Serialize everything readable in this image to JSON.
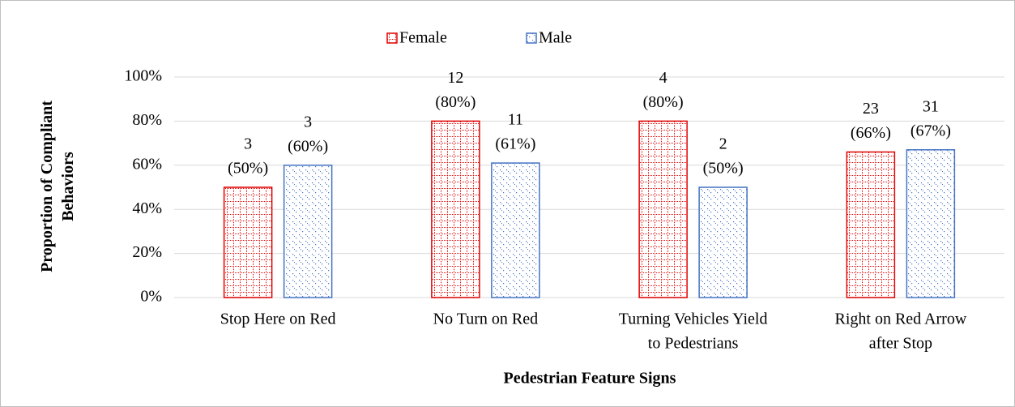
{
  "chart_data": {
    "type": "bar",
    "x_label": "Pedestrian Feature Signs",
    "y_label": [
      "Proportion of Compliant",
      "Behaviors"
    ],
    "categories": [
      [
        "Stop Here on Red"
      ],
      [
        "No Turn on Red"
      ],
      [
        "Turning Vehicles Yield",
        "to Pedestrians"
      ],
      [
        "Right on Red Arrow",
        "after Stop"
      ]
    ],
    "series": [
      {
        "name": "Female",
        "color": "#e00000",
        "values": [
          50,
          80,
          80,
          66
        ],
        "counts": [
          3,
          12,
          4,
          23
        ],
        "value_labels": [
          "(50%)",
          "(80%)",
          "(80%)",
          "(66%)"
        ]
      },
      {
        "name": "Male",
        "color": "#4472c4",
        "values": [
          60,
          61,
          50,
          67
        ],
        "counts": [
          3,
          11,
          2,
          31
        ],
        "value_labels": [
          "(60%)",
          "(61%)",
          "(50%)",
          "(67%)"
        ]
      }
    ],
    "ylim": [
      0,
      100
    ],
    "yticks": [
      {
        "value": 0,
        "label": "0%"
      },
      {
        "value": 20,
        "label": "20%"
      },
      {
        "value": 40,
        "label": "40%"
      },
      {
        "value": 60,
        "label": "60%"
      },
      {
        "value": 80,
        "label": "80%"
      },
      {
        "value": 100,
        "label": "100%"
      }
    ],
    "grid": true,
    "legend": "top"
  }
}
